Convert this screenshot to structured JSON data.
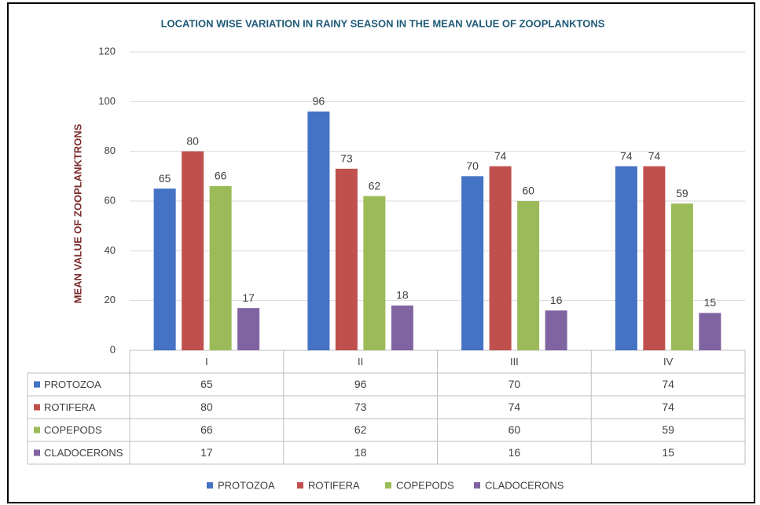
{
  "chart_data": {
    "type": "bar",
    "title": "LOCATION WISE VARIATION IN RAINY SEASON IN THE MEAN VALUE OF ZOOPLANKTONS",
    "y_label": "MEAN VALUE OF ZOOPLANKTRONS",
    "categories": [
      "I",
      "II",
      "III",
      "IV"
    ],
    "series": [
      {
        "name": "PROTOZOA",
        "color": "#4472c4",
        "values": [
          65,
          96,
          70,
          74
        ]
      },
      {
        "name": "ROTIFERA",
        "color": "#c0504d",
        "values": [
          80,
          73,
          74,
          74
        ]
      },
      {
        "name": "COPEPODS",
        "color": "#9bbb59",
        "values": [
          66,
          62,
          60,
          59
        ]
      },
      {
        "name": "CLADOCERONS",
        "color": "#8064a2",
        "values": [
          17,
          18,
          16,
          15
        ]
      }
    ],
    "ylim": [
      0,
      120
    ],
    "yticks": [
      0,
      20,
      40,
      60,
      80,
      100,
      120
    ],
    "grid": true,
    "legend": "bottom"
  }
}
